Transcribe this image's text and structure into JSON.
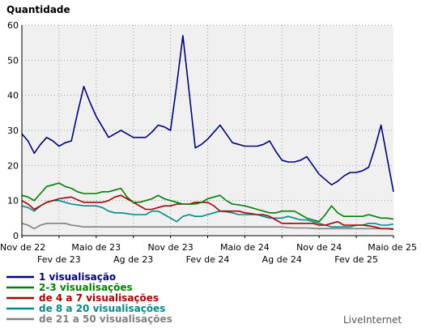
{
  "chart_data": {
    "type": "line",
    "title": "Quantidade",
    "ylim": [
      0,
      60
    ],
    "yticks": [
      0,
      10,
      20,
      30,
      40,
      50,
      60
    ],
    "x_ticks": [
      {
        "label": "Nov de 22",
        "x": 0,
        "row": 1
      },
      {
        "label": "Fev de 23",
        "x": 3,
        "row": 2
      },
      {
        "label": "Maio de 23",
        "x": 6,
        "row": 1
      },
      {
        "label": "Ag de 23",
        "x": 9,
        "row": 2
      },
      {
        "label": "Nov de 23",
        "x": 12,
        "row": 1
      },
      {
        "label": "Fev de 24",
        "x": 15,
        "row": 2
      },
      {
        "label": "Maio de 24",
        "x": 18,
        "row": 1
      },
      {
        "label": "Ag de 24",
        "x": 21,
        "row": 2
      },
      {
        "label": "Nov de 24",
        "x": 24,
        "row": 1
      },
      {
        "label": "Fev de 25",
        "x": 27,
        "row": 2
      },
      {
        "label": "Maio de 25",
        "x": 30,
        "row": 1
      }
    ],
    "x": [
      0,
      0.5,
      1,
      1.5,
      2,
      2.5,
      3,
      3.5,
      4,
      4.5,
      5,
      5.5,
      6,
      6.5,
      7,
      7.5,
      8,
      8.5,
      9,
      9.5,
      10,
      10.5,
      11,
      11.5,
      12,
      12.5,
      13,
      13.5,
      14,
      14.5,
      15,
      15.5,
      16,
      16.5,
      17,
      17.5,
      18,
      18.5,
      19,
      19.5,
      20,
      20.5,
      21,
      21.5,
      22,
      22.5,
      23,
      23.5,
      24,
      24.5,
      25,
      25.5,
      26,
      26.5,
      27,
      27.5,
      28,
      28.5,
      29,
      29.5,
      30
    ],
    "series": [
      {
        "name": "1 visualisação",
        "color": "#000080",
        "values": [
          29,
          27,
          23.5,
          26,
          28,
          27,
          25.5,
          26.5,
          27,
          35,
          42.5,
          38,
          34,
          31,
          28,
          29,
          30,
          29,
          28,
          28,
          28,
          29.5,
          31.5,
          31,
          30,
          43,
          57,
          41,
          25,
          26,
          27.5,
          29.5,
          31.5,
          29,
          26.5,
          26,
          25.5,
          25.5,
          25.5,
          26,
          27,
          24,
          21.5,
          21,
          21,
          21.5,
          22.5,
          20,
          17.5,
          16,
          14.5,
          15.5,
          17,
          18,
          18,
          18.5,
          19.5,
          25,
          31.5,
          22,
          12.5
        ]
      },
      {
        "name": "2-3 visualisações",
        "color": "#008000",
        "values": [
          11.5,
          11,
          10,
          12,
          14,
          14.5,
          15,
          14,
          13.5,
          12.5,
          12,
          12,
          12,
          12.5,
          12.5,
          13,
          13.5,
          11,
          9.5,
          9.5,
          10,
          10.5,
          11.5,
          10.5,
          10,
          9.5,
          9,
          9,
          9,
          9.5,
          10.5,
          11,
          11.5,
          10,
          9,
          8.8,
          8.5,
          8,
          7.5,
          7,
          6.5,
          6.5,
          7,
          7,
          7,
          6,
          5,
          4.5,
          4,
          6,
          8.5,
          6.5,
          5.5,
          5.5,
          5.5,
          5.5,
          6,
          5.5,
          5,
          5,
          4.7
        ]
      },
      {
        "name": "de 4 a 7 visualisações",
        "color": "#aa0000",
        "values": [
          10,
          9,
          7.5,
          8.5,
          9.5,
          10,
          10.5,
          10.8,
          11,
          10.2,
          9.5,
          9.5,
          9.5,
          9.5,
          10,
          11,
          11.5,
          10.5,
          9.5,
          8.5,
          7.5,
          7.5,
          8,
          8.5,
          8.5,
          9,
          9,
          9,
          9.5,
          9.5,
          9.5,
          8.5,
          7,
          7,
          7,
          7,
          6.5,
          6.3,
          6,
          6,
          5.5,
          4.5,
          3.5,
          3.5,
          3.5,
          3.5,
          3.5,
          3.5,
          3,
          3,
          3.5,
          4,
          3,
          3,
          3,
          3,
          2.8,
          2.5,
          2,
          2,
          1.8
        ]
      },
      {
        "name": "de 8 a 20 visualisações",
        "color": "#008B8B",
        "values": [
          8.5,
          8,
          7,
          8.5,
          9.5,
          10,
          10,
          9.5,
          9,
          8.8,
          8.5,
          8.5,
          8.5,
          8,
          7,
          6.5,
          6.5,
          6.3,
          6,
          6,
          6,
          7,
          7,
          6,
          5,
          4,
          5.5,
          6,
          5.5,
          5.5,
          6,
          6.5,
          7,
          6.8,
          6.5,
          6,
          6,
          6,
          6,
          5.5,
          5,
          5,
          5,
          5.5,
          5,
          4.5,
          4.5,
          4,
          3.5,
          3,
          2.5,
          2.5,
          2.5,
          2.5,
          3,
          3,
          3.5,
          3.5,
          3,
          3,
          3.3
        ]
      },
      {
        "name": "de 21 a 50 visualisações",
        "color": "#808080",
        "values": [
          3.5,
          3,
          2,
          3,
          3.5,
          3.5,
          3.5,
          3.5,
          3,
          2.8,
          2.5,
          2.5,
          2.5,
          2.5,
          2.5,
          2.5,
          2.5,
          2.5,
          2.5,
          2.5,
          2.5,
          2.5,
          2.5,
          2.5,
          2.5,
          2.5,
          2.5,
          2.5,
          2.5,
          2.5,
          2.5,
          2.5,
          2.5,
          2.5,
          2.5,
          2.5,
          2.5,
          2.5,
          2.5,
          2.5,
          2.5,
          2.5,
          2.5,
          2.3,
          2.2,
          2.2,
          2.2,
          2.1,
          2,
          2,
          2,
          2,
          2,
          2,
          2,
          2,
          2,
          2,
          2,
          2,
          2
        ]
      }
    ]
  },
  "brand": "LiveInternet"
}
